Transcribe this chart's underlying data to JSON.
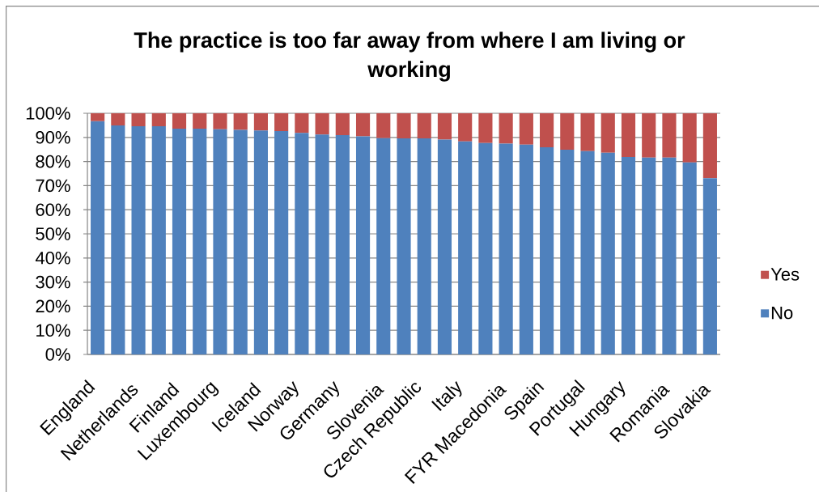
{
  "chart_data": {
    "type": "bar",
    "title": "The practice is too far away from where I am living or working",
    "categories": [
      "England",
      null,
      "Netherlands",
      null,
      "Finland",
      null,
      "Luxembourg",
      null,
      "Iceland",
      null,
      "Norway",
      null,
      "Germany",
      null,
      "Slovenia",
      null,
      "Czech Republic",
      null,
      "Italy",
      null,
      "FYR Macedonia",
      null,
      "Spain",
      null,
      "Portugal",
      null,
      "Hungary",
      null,
      "Romania",
      null,
      "Slovakia"
    ],
    "series": [
      {
        "name": "No",
        "color": "#4f81bd",
        "values": [
          96.7,
          95.0,
          94.6,
          94.6,
          93.6,
          93.6,
          93.4,
          93.1,
          92.9,
          92.6,
          91.9,
          91.2,
          90.9,
          90.4,
          89.7,
          89.6,
          89.6,
          89.1,
          88.3,
          87.7,
          87.4,
          87.0,
          85.9,
          84.9,
          84.3,
          83.6,
          81.9,
          81.6,
          81.6,
          79.6,
          73.1
        ]
      },
      {
        "name": "Yes",
        "color": "#c0504d",
        "values": [
          3.3,
          5.0,
          5.4,
          5.4,
          6.4,
          6.4,
          6.6,
          6.9,
          7.1,
          7.4,
          8.1,
          8.8,
          9.1,
          9.6,
          10.3,
          10.4,
          10.4,
          10.9,
          11.7,
          12.3,
          12.6,
          13.0,
          14.1,
          15.1,
          15.7,
          16.4,
          18.1,
          18.4,
          18.4,
          20.4,
          26.9
        ]
      }
    ],
    "stacked": true,
    "ylim": [
      0,
      100
    ],
    "yticks": [
      {
        "value": 0,
        "label": "0%"
      },
      {
        "value": 10,
        "label": "10%"
      },
      {
        "value": 20,
        "label": "20%"
      },
      {
        "value": 30,
        "label": "30%"
      },
      {
        "value": 40,
        "label": "40%"
      },
      {
        "value": 50,
        "label": "50%"
      },
      {
        "value": 60,
        "label": "60%"
      },
      {
        "value": 70,
        "label": "70%"
      },
      {
        "value": 80,
        "label": "80%"
      },
      {
        "value": 90,
        "label": "90%"
      },
      {
        "value": 100,
        "label": "100%"
      }
    ],
    "grid": "y",
    "legend": "right"
  }
}
